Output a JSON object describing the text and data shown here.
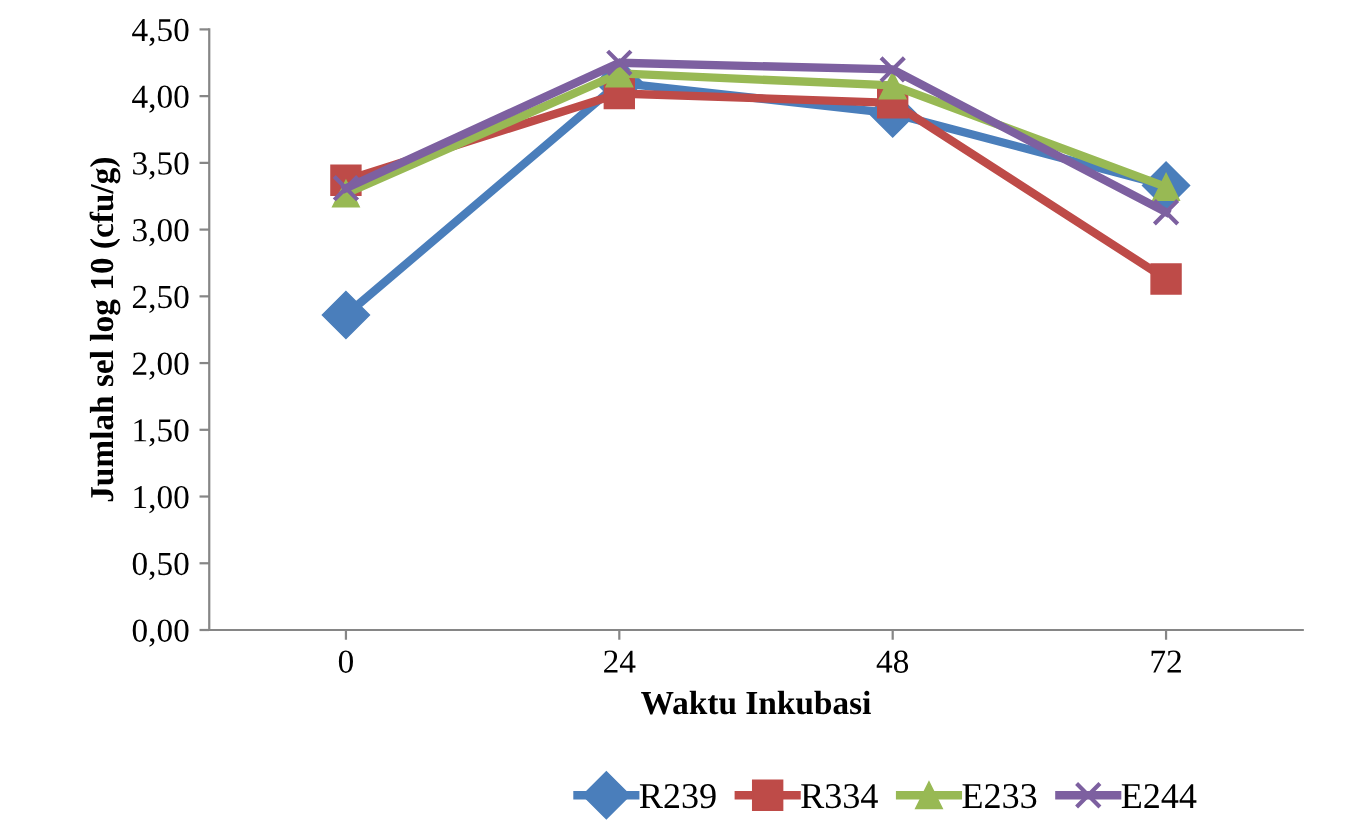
{
  "chart_data": {
    "type": "line",
    "xlabel": "Waktu Inkubasi",
    "ylabel": "Jumlah sel log 10 (cfu/g)",
    "categories": [
      "0",
      "24",
      "48",
      "72"
    ],
    "series": [
      {
        "name": "R239",
        "color": "#4a7ebb",
        "marker": "diamond",
        "values": [
          2.36,
          4.1,
          3.87,
          3.33
        ]
      },
      {
        "name": "R334",
        "color": "#be4b48",
        "marker": "square",
        "values": [
          3.37,
          4.02,
          3.95,
          2.63
        ]
      },
      {
        "name": "E233",
        "color": "#98b954",
        "marker": "triangle",
        "values": [
          3.27,
          4.17,
          4.08,
          3.32
        ]
      },
      {
        "name": "E244",
        "color": "#7d60a0",
        "marker": "cross",
        "values": [
          3.31,
          4.25,
          4.2,
          3.13
        ]
      }
    ],
    "ylim": [
      0,
      4.5
    ],
    "yticks": [
      {
        "value": 0,
        "label": "0,00"
      },
      {
        "value": 0.5,
        "label": "0,50"
      },
      {
        "value": 1,
        "label": "1,00"
      },
      {
        "value": 1.5,
        "label": "1,50"
      },
      {
        "value": 2,
        "label": "2,00"
      },
      {
        "value": 2.5,
        "label": "2,50"
      },
      {
        "value": 3,
        "label": "3,00"
      },
      {
        "value": 3.5,
        "label": "3,50"
      },
      {
        "value": 4,
        "label": "4,00"
      },
      {
        "value": 4.5,
        "label": "4,50"
      }
    ],
    "grid": false,
    "legend": "bottom",
    "line_style": "solid"
  }
}
